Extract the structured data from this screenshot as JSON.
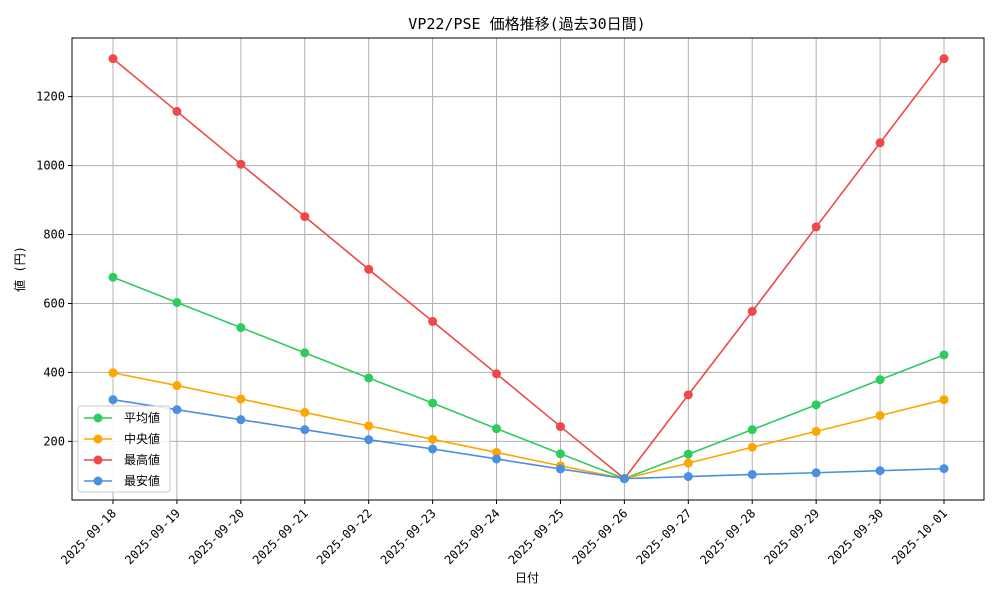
{
  "chart_data": {
    "type": "line",
    "title": "VP22/PSE 価格推移(過去30日間)",
    "xlabel": "日付",
    "ylabel": "値 (円)",
    "categories": [
      "2025-09-18",
      "2025-09-19",
      "2025-09-20",
      "2025-09-21",
      "2025-09-22",
      "2025-09-23",
      "2025-09-24",
      "2025-09-25",
      "2025-09-26",
      "2025-09-27",
      "2025-09-28",
      "2025-09-29",
      "2025-09-30",
      "2025-10-01"
    ],
    "ylim": [
      30,
      1370
    ],
    "yticks": [
      200,
      400,
      600,
      800,
      1000,
      1200
    ],
    "grid": true,
    "legend_position": "lower-left",
    "series": [
      {
        "name": "平均値",
        "color": "#2ecc5e",
        "values": [
          676,
          603,
          530,
          457,
          384,
          311,
          237,
          164,
          92,
          163,
          234,
          306,
          379,
          451
        ]
      },
      {
        "name": "中央値",
        "color": "#ffa500",
        "values": [
          399,
          362,
          323,
          284,
          245,
          206,
          168,
          129,
          92,
          137,
          183,
          229,
          275,
          321
        ]
      },
      {
        "name": "最高値",
        "color": "#f04848",
        "values": [
          1310,
          1157,
          1004,
          852,
          699,
          548,
          396,
          243,
          92,
          335,
          577,
          822,
          1066,
          1310
        ]
      },
      {
        "name": "最安値",
        "color": "#4a90e2",
        "values": [
          321,
          292,
          263,
          234,
          205,
          178,
          149,
          120,
          92,
          98,
          104,
          109,
          115,
          121
        ]
      }
    ]
  }
}
